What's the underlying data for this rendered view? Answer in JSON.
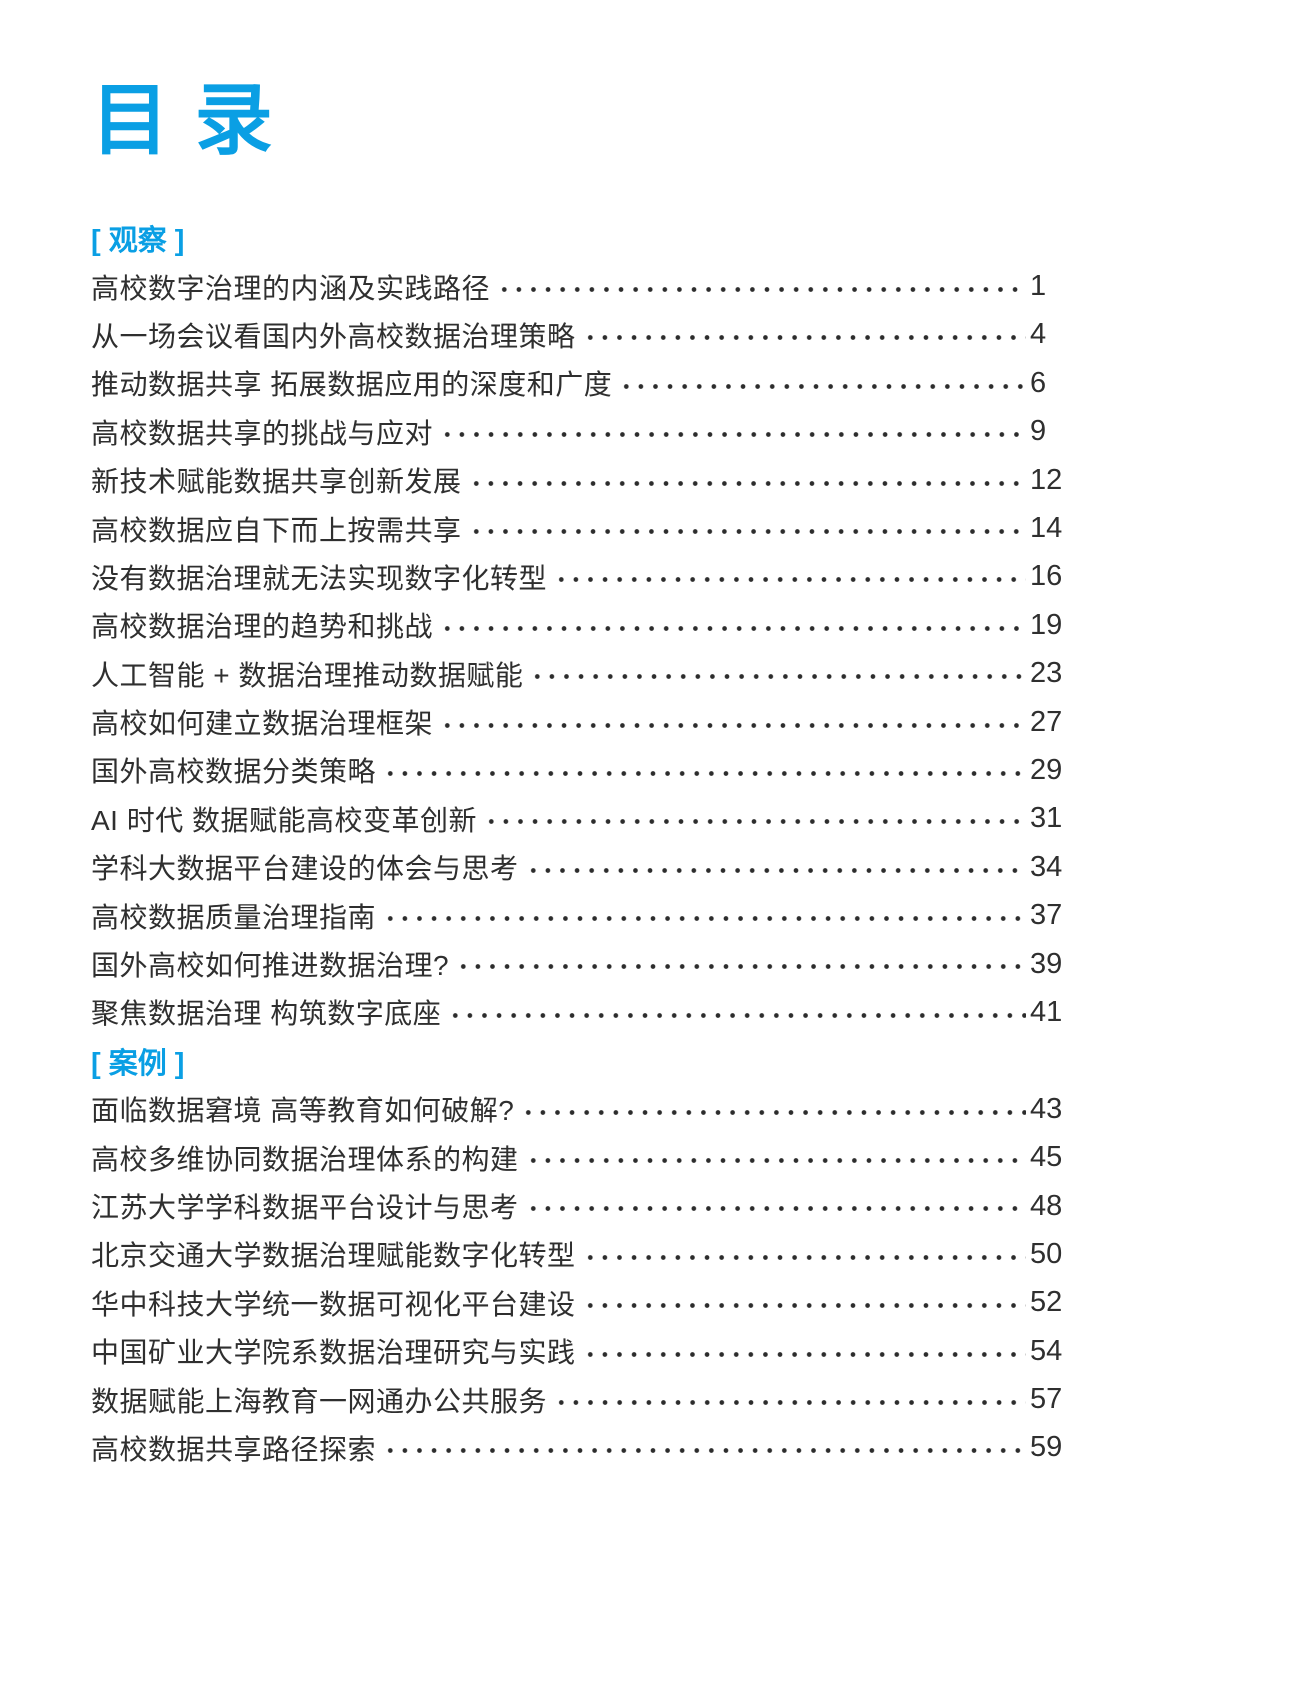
{
  "document": {
    "title": "目 录",
    "accent_color": "#0a9fe4",
    "text_color": "#2f2f2f",
    "sections": [
      {
        "label": "[ 观察 ]",
        "entries": [
          {
            "title": "高校数字治理的内涵及实践路径",
            "page": "1"
          },
          {
            "title": "从一场会议看国内外高校数据治理策略",
            "page": "4"
          },
          {
            "title": "推动数据共享 拓展数据应用的深度和广度",
            "page": "6"
          },
          {
            "title": "高校数据共享的挑战与应对",
            "page": "9"
          },
          {
            "title": "新技术赋能数据共享创新发展",
            "page": "12"
          },
          {
            "title": "高校数据应自下而上按需共享",
            "page": "14"
          },
          {
            "title": "没有数据治理就无法实现数字化转型",
            "page": "16"
          },
          {
            "title": "高校数据治理的趋势和挑战",
            "page": "19"
          },
          {
            "title": "人工智能 + 数据治理推动数据赋能",
            "page": "23"
          },
          {
            "title": "高校如何建立数据治理框架",
            "page": "27"
          },
          {
            "title": "国外高校数据分类策略",
            "page": "29"
          },
          {
            "title": "AI 时代 数据赋能高校变革创新",
            "page": "31"
          },
          {
            "title": "学科大数据平台建设的体会与思考",
            "page": "34"
          },
          {
            "title": "高校数据质量治理指南",
            "page": "37"
          },
          {
            "title": "国外高校如何推进数据治理?",
            "page": "39"
          },
          {
            "title": "聚焦数据治理 构筑数字底座",
            "page": "41"
          }
        ]
      },
      {
        "label": "[ 案例 ]",
        "entries": [
          {
            "title": "面临数据窘境 高等教育如何破解?",
            "page": "43"
          },
          {
            "title": "高校多维协同数据治理体系的构建",
            "page": "45"
          },
          {
            "title": "江苏大学学科数据平台设计与思考",
            "page": "48"
          },
          {
            "title": "北京交通大学数据治理赋能数字化转型",
            "page": "50"
          },
          {
            "title": "华中科技大学统一数据可视化平台建设",
            "page": "52"
          },
          {
            "title": "中国矿业大学院系数据治理研究与实践",
            "page": "54"
          },
          {
            "title": "数据赋能上海教育一网通办公共服务",
            "page": "57"
          },
          {
            "title": "高校数据共享路径探索",
            "page": "59"
          }
        ]
      }
    ]
  }
}
